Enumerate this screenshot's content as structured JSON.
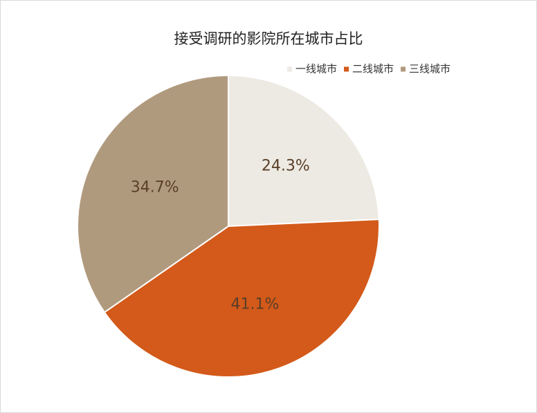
{
  "chart_data": {
    "type": "pie",
    "title": "接受调研的影院所在城市占比",
    "categories": [
      "一线城市",
      "二线城市",
      "三线城市"
    ],
    "values": [
      24.3,
      41.1,
      34.7
    ],
    "value_labels": [
      "24.3%",
      "41.1%",
      "34.7%"
    ],
    "colors": [
      "#EDEAE3",
      "#D35A1A",
      "#B09A7E"
    ],
    "legend": "top-right"
  }
}
